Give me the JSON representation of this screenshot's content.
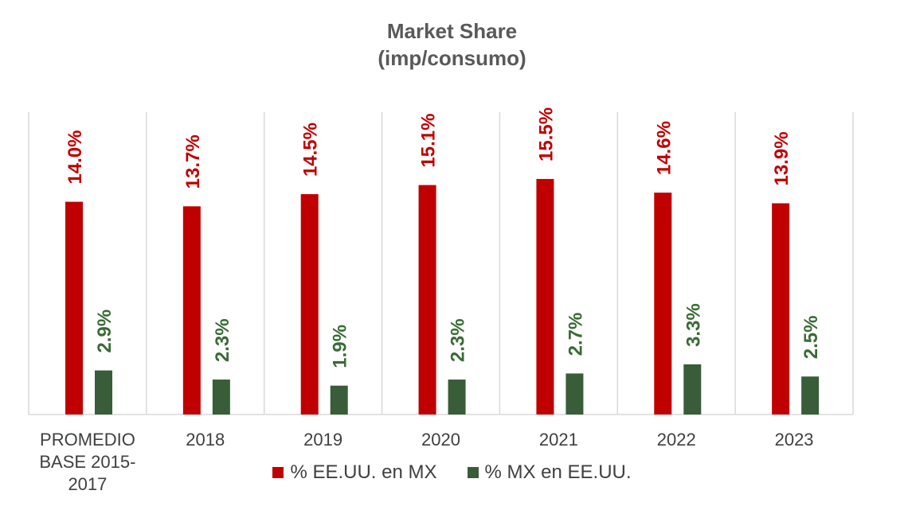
{
  "colors": {
    "series_1": "#c00000",
    "series_2": "#385d38",
    "label_1": "#c00000",
    "label_2": "#3a6b35",
    "axis": "#d9d9d9",
    "text": "#404040"
  },
  "chart_data": {
    "type": "bar",
    "title": "Market Share",
    "subtitle": "(imp/consumo)",
    "categories": [
      [
        "PROMEDIO",
        "BASE 2015-",
        "2017"
      ],
      [
        "2018"
      ],
      [
        "2019"
      ],
      [
        "2020"
      ],
      [
        "2021"
      ],
      [
        "2022"
      ],
      [
        "2023"
      ]
    ],
    "series": [
      {
        "name": "% EE.UU. en MX",
        "values": [
          14.0,
          13.7,
          14.5,
          15.1,
          15.5,
          14.6,
          13.9
        ],
        "labels": [
          "14.0%",
          "13.7%",
          "14.5%",
          "15.1%",
          "15.5%",
          "14.6%",
          "13.9%"
        ]
      },
      {
        "name": "% MX en EE.UU.",
        "values": [
          2.9,
          2.3,
          1.9,
          2.3,
          2.7,
          3.3,
          2.5
        ],
        "labels": [
          "2.9%",
          "2.3%",
          "1.9%",
          "2.3%",
          "2.7%",
          "3.3%",
          "2.5%"
        ]
      }
    ],
    "ylim": [
      0,
      20
    ],
    "grid": false,
    "legend_position": "bottom",
    "data_label_orientation": "vertical"
  }
}
